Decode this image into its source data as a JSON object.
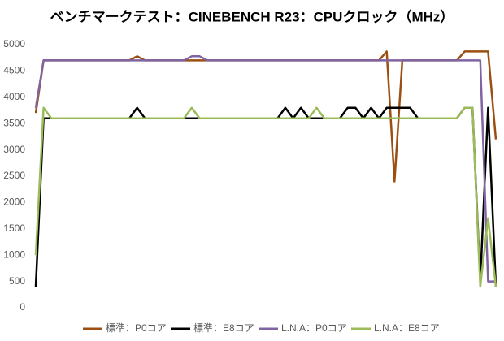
{
  "chart_data": {
    "type": "line",
    "title": "ベンチマークテスト：CINEBENCH R23：CPUクロック（MHz）",
    "categories": [
      null,
      null,
      null,
      null,
      null,
      null,
      null,
      null,
      null,
      null,
      null,
      null,
      null,
      null,
      null,
      null,
      null,
      null,
      null,
      null,
      null,
      null,
      null,
      null,
      null,
      null,
      null,
      null,
      null,
      null,
      null,
      null,
      null,
      null,
      null,
      null,
      null,
      null,
      null,
      null,
      null,
      null,
      null,
      null,
      null,
      null,
      null,
      null,
      null,
      null,
      null,
      null,
      null,
      null,
      null,
      null,
      null,
      null,
      null,
      null
    ],
    "ylim": [
      0,
      5000
    ],
    "yticks": [
      0,
      500,
      1000,
      1500,
      2000,
      2500,
      3000,
      3500,
      4000,
      4500,
      5000
    ],
    "grid": false,
    "legend": "bottom",
    "series": [
      {
        "name": "標準：P0コア",
        "color": "#9c4f12",
        "values": [
          3700,
          4700,
          4700,
          4700,
          4700,
          4700,
          4700,
          4700,
          4700,
          4700,
          4700,
          4700,
          4700,
          4780,
          4700,
          4700,
          4700,
          4700,
          4700,
          4700,
          4700,
          4700,
          4700,
          4700,
          4700,
          4700,
          4700,
          4700,
          4700,
          4700,
          4700,
          4700,
          4700,
          4700,
          4700,
          4700,
          4700,
          4700,
          4700,
          4700,
          4700,
          4700,
          4700,
          4700,
          4700,
          4870,
          2400,
          4700,
          4700,
          4700,
          4700,
          4700,
          4700,
          4700,
          4700,
          4870,
          4870,
          4870,
          4870,
          3200
        ]
      },
      {
        "name": "標準：E8コア",
        "color": "#000000",
        "values": [
          400,
          3600,
          3600,
          3600,
          3600,
          3600,
          3600,
          3600,
          3600,
          3600,
          3600,
          3600,
          3600,
          3800,
          3600,
          3600,
          3600,
          3600,
          3600,
          3600,
          3600,
          3600,
          3600,
          3600,
          3600,
          3600,
          3600,
          3600,
          3600,
          3600,
          3600,
          3600,
          3800,
          3600,
          3800,
          3600,
          3600,
          3600,
          3600,
          3600,
          3800,
          3800,
          3600,
          3800,
          3600,
          3800,
          3800,
          3800,
          3800,
          3600,
          3600,
          3600,
          3600,
          3600,
          3600,
          3800,
          3800,
          500,
          3800,
          400
        ]
      },
      {
        "name": "L.N.A：P0コア",
        "color": "#8064a2",
        "values": [
          3800,
          4700,
          4700,
          4700,
          4700,
          4700,
          4700,
          4700,
          4700,
          4700,
          4700,
          4700,
          4700,
          4700,
          4700,
          4700,
          4700,
          4700,
          4700,
          4700,
          4780,
          4780,
          4700,
          4700,
          4700,
          4700,
          4700,
          4700,
          4700,
          4700,
          4700,
          4700,
          4700,
          4700,
          4700,
          4700,
          4700,
          4700,
          4700,
          4700,
          4700,
          4700,
          4700,
          4700,
          4700,
          4700,
          4700,
          4700,
          4700,
          4700,
          4700,
          4700,
          4700,
          4700,
          4700,
          4700,
          4700,
          4700,
          500,
          500
        ]
      },
      {
        "name": "L.N.A：E8コア",
        "color": "#9bbb59",
        "values": [
          1000,
          3800,
          3600,
          3600,
          3600,
          3600,
          3600,
          3600,
          3600,
          3600,
          3600,
          3600,
          3600,
          3600,
          3600,
          3600,
          3600,
          3600,
          3600,
          3600,
          3800,
          3600,
          3600,
          3600,
          3600,
          3600,
          3600,
          3600,
          3600,
          3600,
          3600,
          3600,
          3600,
          3600,
          3600,
          3600,
          3800,
          3600,
          3600,
          3600,
          3600,
          3600,
          3600,
          3600,
          3600,
          3600,
          3600,
          3600,
          3600,
          3600,
          3600,
          3600,
          3600,
          3600,
          3600,
          3800,
          3800,
          400,
          1700,
          400
        ]
      }
    ]
  }
}
